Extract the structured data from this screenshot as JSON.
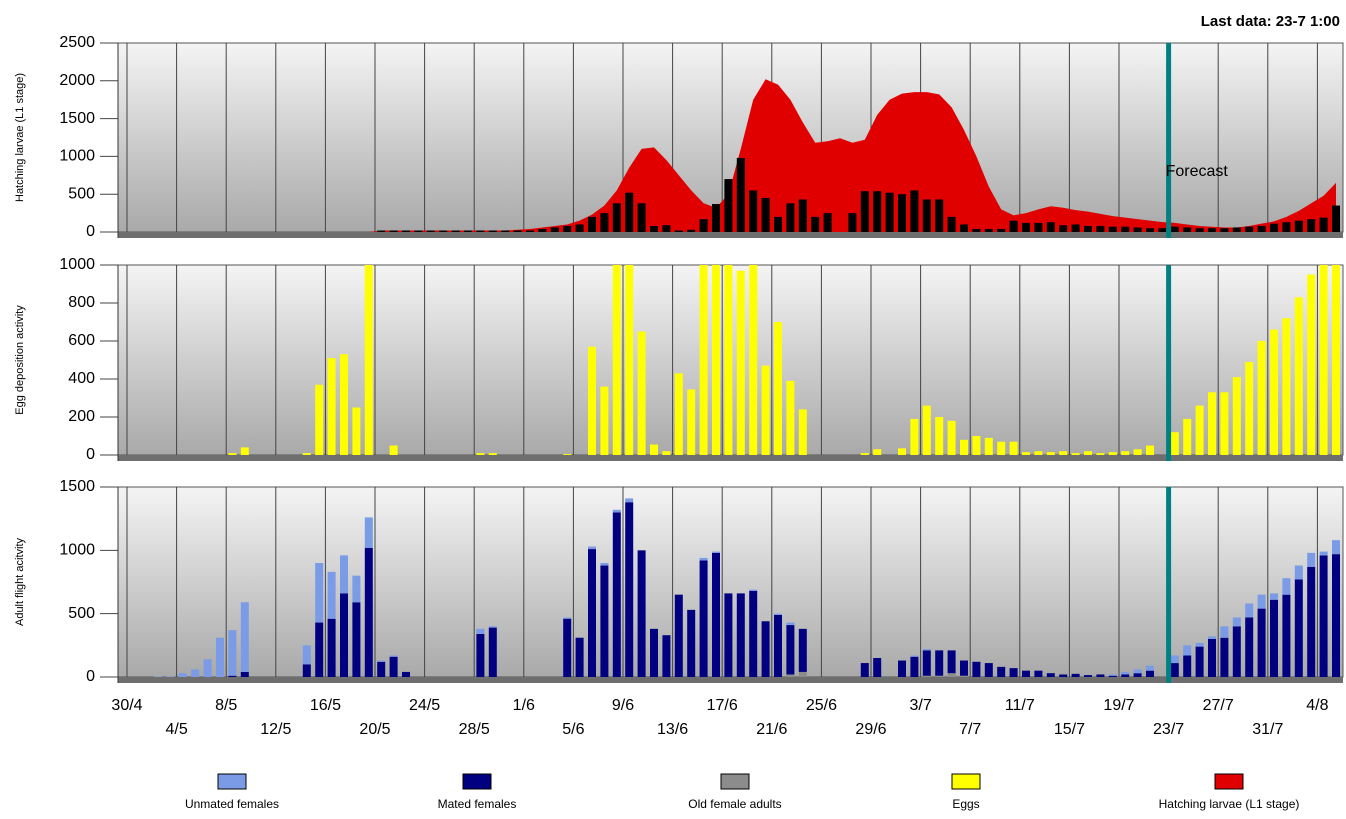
{
  "last_data": "Last data: 23-7 1:00",
  "forecast": {
    "label": "Forecast",
    "at": "23/7"
  },
  "chart_data": [
    {
      "type": "bar",
      "ylabel": "Hatching larvae (L1 stage)",
      "ylim": [
        0,
        2500
      ],
      "yticks": [
        0,
        500,
        1000,
        1500,
        2000,
        2500
      ],
      "grid": "x",
      "series": [
        {
          "name": "Hatching larvae (L1 stage)",
          "color": "#e00000",
          "style": "area",
          "values": [
            0,
            0,
            0,
            0,
            0,
            0,
            0,
            0,
            0,
            0,
            0,
            0,
            0,
            0,
            0,
            0,
            0,
            0,
            0,
            0,
            20,
            20,
            20,
            20,
            20,
            20,
            20,
            20,
            20,
            20,
            20,
            30,
            40,
            60,
            80,
            100,
            150,
            230,
            350,
            550,
            850,
            1100,
            1120,
            950,
            750,
            550,
            380,
            320,
            500,
            1100,
            1750,
            2020,
            1950,
            1750,
            1450,
            1180,
            1200,
            1240,
            1180,
            1220,
            1550,
            1750,
            1830,
            1850,
            1850,
            1820,
            1650,
            1350,
            1000,
            600,
            300,
            220,
            250,
            300,
            340,
            320,
            290,
            270,
            240,
            210,
            190,
            170,
            150,
            130,
            120,
            100,
            80,
            70,
            60,
            60,
            80,
            110,
            140,
            200,
            280,
            380,
            480,
            650
          ]
        },
        {
          "color": "#000000",
          "style": "bar",
          "values": [
            0,
            0,
            0,
            0,
            0,
            0,
            0,
            0,
            0,
            0,
            0,
            0,
            0,
            0,
            0,
            0,
            0,
            0,
            0,
            0,
            20,
            20,
            20,
            20,
            20,
            20,
            20,
            20,
            20,
            20,
            20,
            20,
            20,
            40,
            60,
            80,
            100,
            200,
            250,
            380,
            520,
            380,
            80,
            90,
            20,
            30,
            170,
            370,
            700,
            980,
            550,
            450,
            200,
            380,
            430,
            200,
            250,
            0,
            250,
            540,
            540,
            520,
            500,
            550,
            430,
            430,
            200,
            100,
            40,
            40,
            40,
            150,
            120,
            120,
            130,
            90,
            100,
            80,
            80,
            70,
            70,
            60,
            50,
            50,
            70,
            60,
            50,
            50,
            50,
            60,
            70,
            80,
            110,
            130,
            150,
            170,
            190,
            350
          ]
        }
      ]
    },
    {
      "type": "bar",
      "ylabel": "Egg deposition activity",
      "ylim": [
        0,
        1000
      ],
      "yticks": [
        0,
        200,
        400,
        600,
        800,
        1000
      ],
      "grid": "x",
      "series": [
        {
          "name": "Eggs",
          "color": "#ffff00",
          "style": "bar",
          "values": [
            0,
            0,
            0,
            0,
            0,
            0,
            0,
            0,
            10,
            40,
            0,
            0,
            0,
            0,
            10,
            370,
            510,
            530,
            250,
            1000,
            0,
            50,
            0,
            0,
            0,
            0,
            0,
            0,
            10,
            10,
            0,
            0,
            0,
            0,
            0,
            5,
            0,
            570,
            360,
            1000,
            1000,
            650,
            55,
            20,
            430,
            345,
            1000,
            1000,
            1000,
            970,
            1000,
            470,
            700,
            390,
            240,
            0,
            0,
            0,
            0,
            10,
            30,
            0,
            35,
            190,
            260,
            200,
            180,
            80,
            100,
            90,
            70,
            70,
            15,
            20,
            15,
            20,
            10,
            20,
            10,
            15,
            20,
            30,
            50,
            0,
            120,
            190,
            260,
            330,
            330,
            410,
            490,
            600,
            660,
            720,
            830,
            950,
            1000,
            1000
          ]
        }
      ]
    },
    {
      "type": "bar",
      "stacked": true,
      "ylabel": "Adult flight acitvity",
      "ylim": [
        0,
        1500
      ],
      "yticks": [
        0,
        500,
        1000,
        1500
      ],
      "grid": "x",
      "categories": [
        "30/4",
        null,
        null,
        null,
        "4/5",
        null,
        null,
        null,
        "8/5",
        null,
        null,
        null,
        "12/5",
        null,
        null,
        null,
        "16/5",
        null,
        null,
        null,
        "20/5",
        null,
        null,
        null,
        "24/5",
        null,
        null,
        null,
        "28/5",
        null,
        null,
        null,
        "1/6",
        null,
        null,
        null,
        "5/6",
        null,
        null,
        null,
        "9/6",
        null,
        null,
        null,
        "13/6",
        null,
        null,
        null,
        "17/6",
        null,
        null,
        null,
        "21/6",
        null,
        null,
        null,
        "25/6",
        null,
        null,
        null,
        "29/6",
        null,
        null,
        null,
        "3/7",
        null,
        null,
        null,
        "7/7",
        null,
        null,
        null,
        "11/7",
        null,
        null,
        null,
        "15/7",
        null,
        null,
        null,
        "19/7",
        null,
        null,
        null,
        "23/7",
        null,
        null,
        null,
        "27/7",
        null,
        null,
        null,
        "31/7",
        null,
        null,
        null,
        "4/8",
        null
      ],
      "series": [
        {
          "name": "Unmated females",
          "color": "#7b9be6",
          "values": [
            0,
            0,
            5,
            5,
            30,
            60,
            140,
            310,
            360,
            550,
            0,
            0,
            0,
            0,
            150,
            470,
            370,
            300,
            210,
            240,
            10,
            10,
            0,
            0,
            0,
            0,
            0,
            0,
            40,
            10,
            0,
            0,
            0,
            0,
            0,
            10,
            0,
            20,
            20,
            20,
            30,
            0,
            0,
            0,
            0,
            0,
            20,
            10,
            0,
            0,
            10,
            0,
            10,
            20,
            0,
            0,
            0,
            0,
            0,
            0,
            0,
            0,
            0,
            10,
            10,
            0,
            0,
            0,
            0,
            0,
            0,
            0,
            0,
            0,
            0,
            0,
            0,
            0,
            0,
            10,
            20,
            30,
            40,
            0,
            60,
            80,
            30,
            20,
            90,
            70,
            110,
            110,
            50,
            130,
            110,
            110,
            30,
            110
          ]
        },
        {
          "name": "Mated females",
          "color": "#000080",
          "values": [
            0,
            0,
            0,
            0,
            0,
            0,
            0,
            0,
            10,
            40,
            0,
            0,
            0,
            0,
            100,
            430,
            460,
            660,
            590,
            1020,
            120,
            160,
            40,
            0,
            0,
            0,
            0,
            0,
            340,
            390,
            0,
            0,
            0,
            0,
            0,
            460,
            310,
            1010,
            880,
            1300,
            1380,
            1000,
            380,
            330,
            650,
            530,
            920,
            980,
            660,
            660,
            680,
            440,
            490,
            390,
            340,
            0,
            0,
            0,
            0,
            110,
            150,
            0,
            130,
            160,
            200,
            200,
            180,
            120,
            120,
            110,
            80,
            70,
            50,
            50,
            30,
            20,
            25,
            15,
            20,
            10,
            20,
            30,
            50,
            0,
            110,
            170,
            240,
            300,
            310,
            400,
            470,
            540,
            610,
            650,
            770,
            870,
            960,
            970
          ]
        },
        {
          "name": "Old female adults",
          "color": "#8c8c8c",
          "values": [
            0,
            0,
            0,
            0,
            0,
            0,
            0,
            0,
            0,
            0,
            0,
            0,
            0,
            0,
            0,
            0,
            0,
            0,
            0,
            0,
            0,
            0,
            0,
            0,
            0,
            0,
            0,
            0,
            0,
            0,
            0,
            0,
            0,
            0,
            0,
            0,
            0,
            0,
            0,
            0,
            0,
            0,
            0,
            0,
            0,
            0,
            0,
            0,
            0,
            0,
            0,
            0,
            0,
            20,
            40,
            0,
            0,
            0,
            0,
            0,
            0,
            0,
            0,
            0,
            10,
            10,
            30,
            10,
            0,
            0,
            0,
            0,
            0,
            0,
            0,
            0,
            0,
            0,
            0,
            0,
            0,
            0,
            0,
            0,
            0,
            0,
            0,
            0,
            0,
            0,
            0,
            0,
            0,
            0,
            0,
            0,
            0,
            0
          ]
        }
      ]
    }
  ]
}
